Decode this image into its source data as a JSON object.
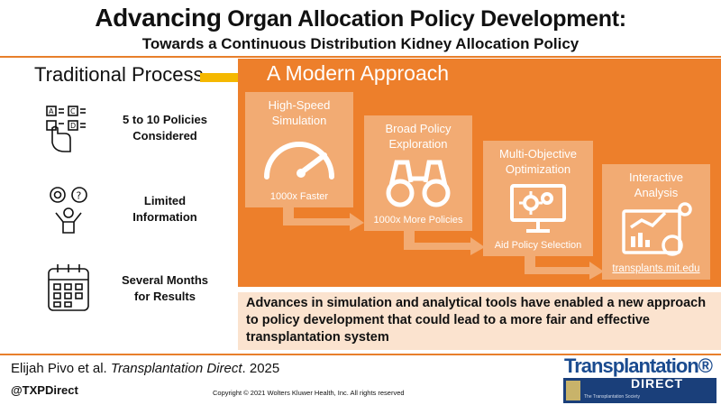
{
  "header": {
    "title_part1": "Advancing",
    "title_part2": " Organ Allocation Policy Development:",
    "subtitle": "Towards a Continuous Distribution Kidney Allocation Policy"
  },
  "traditional": {
    "heading": "Traditional Process",
    "items": [
      {
        "line1": "5 to 10 Policies",
        "line2": "Considered",
        "icon": "checklist-icon"
      },
      {
        "line1": "Limited",
        "line2": "Information",
        "icon": "confused-person-icon"
      },
      {
        "line1": "Several Months",
        "line2": "for Results",
        "icon": "calendar-icon"
      }
    ]
  },
  "modern": {
    "heading": "A Modern Approach",
    "steps": [
      {
        "label1": "High-Speed",
        "label2": "Simulation",
        "sub": "1000x Faster",
        "icon": "speedometer-icon"
      },
      {
        "label1": "Broad Policy",
        "label2": "Exploration",
        "sub": "1000x More Policies",
        "icon": "binoculars-icon"
      },
      {
        "label1": "Multi-Objective",
        "label2": "Optimization",
        "sub": "Aid Policy Selection",
        "icon": "monitor-gears-icon"
      },
      {
        "label1": "Interactive",
        "label2": "Analysis",
        "sub": "transplants.mit.edu",
        "icon": "analytics-dashboard-icon"
      }
    ],
    "summary": "Advances in simulation and analytical tools have enabled a new approach to policy development that could lead to a more fair and effective transplantation system"
  },
  "footer": {
    "authors": "Elijah Pivo et al. ",
    "journal": "Transplantation Direct",
    "year": ". 2025",
    "handle": "@TXPDirect",
    "copyright": "Copyright © 2021 Wolters Kluwer Health, Inc. All rights reserved",
    "logo_word": "Transplantation®",
    "logo_direct": "DIRECT",
    "logo_society": "The Transplantation Society"
  },
  "colors": {
    "accent": "#ed7f2b",
    "step": "#f2ab73",
    "arrow": "#f5b800",
    "summary_bg": "#fbe3cf",
    "logo_blue": "#1a3f7a"
  }
}
